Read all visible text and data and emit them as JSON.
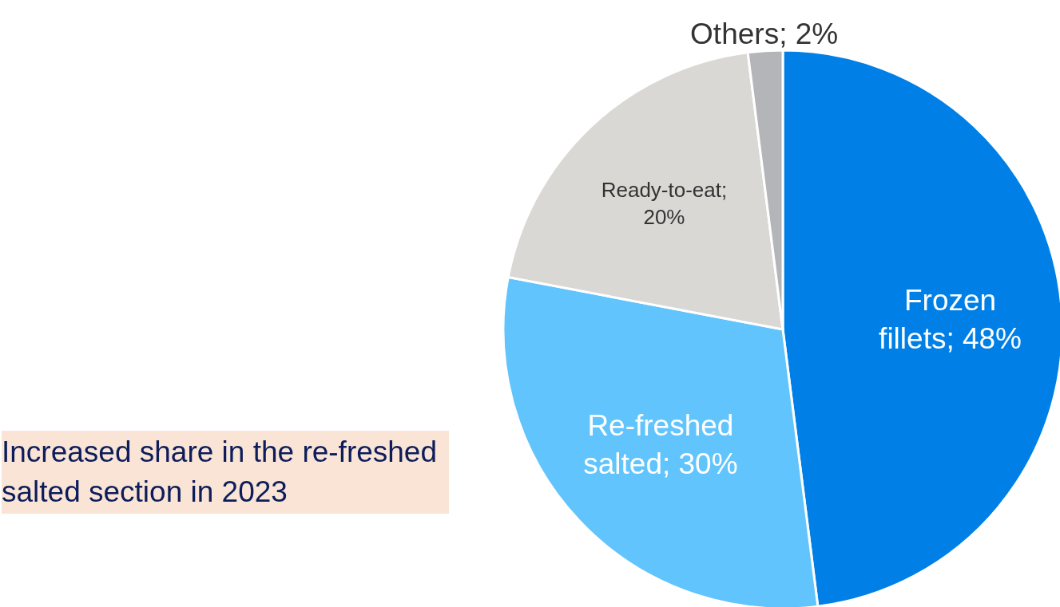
{
  "chart_data": {
    "type": "pie",
    "categories": [
      "Frozen fillets; 48%",
      "Re-freshed salted; 30%",
      "Ready-to-eat; 20%",
      "Others; 2%"
    ],
    "values": [
      48,
      30,
      20,
      2
    ],
    "colors": [
      "#0080e6",
      "#62c4fc",
      "#d9d8d5",
      "#b3b5b8"
    ],
    "legend": false,
    "annotations": [
      "Increased share in the re-freshed salted section in 2023"
    ]
  }
}
